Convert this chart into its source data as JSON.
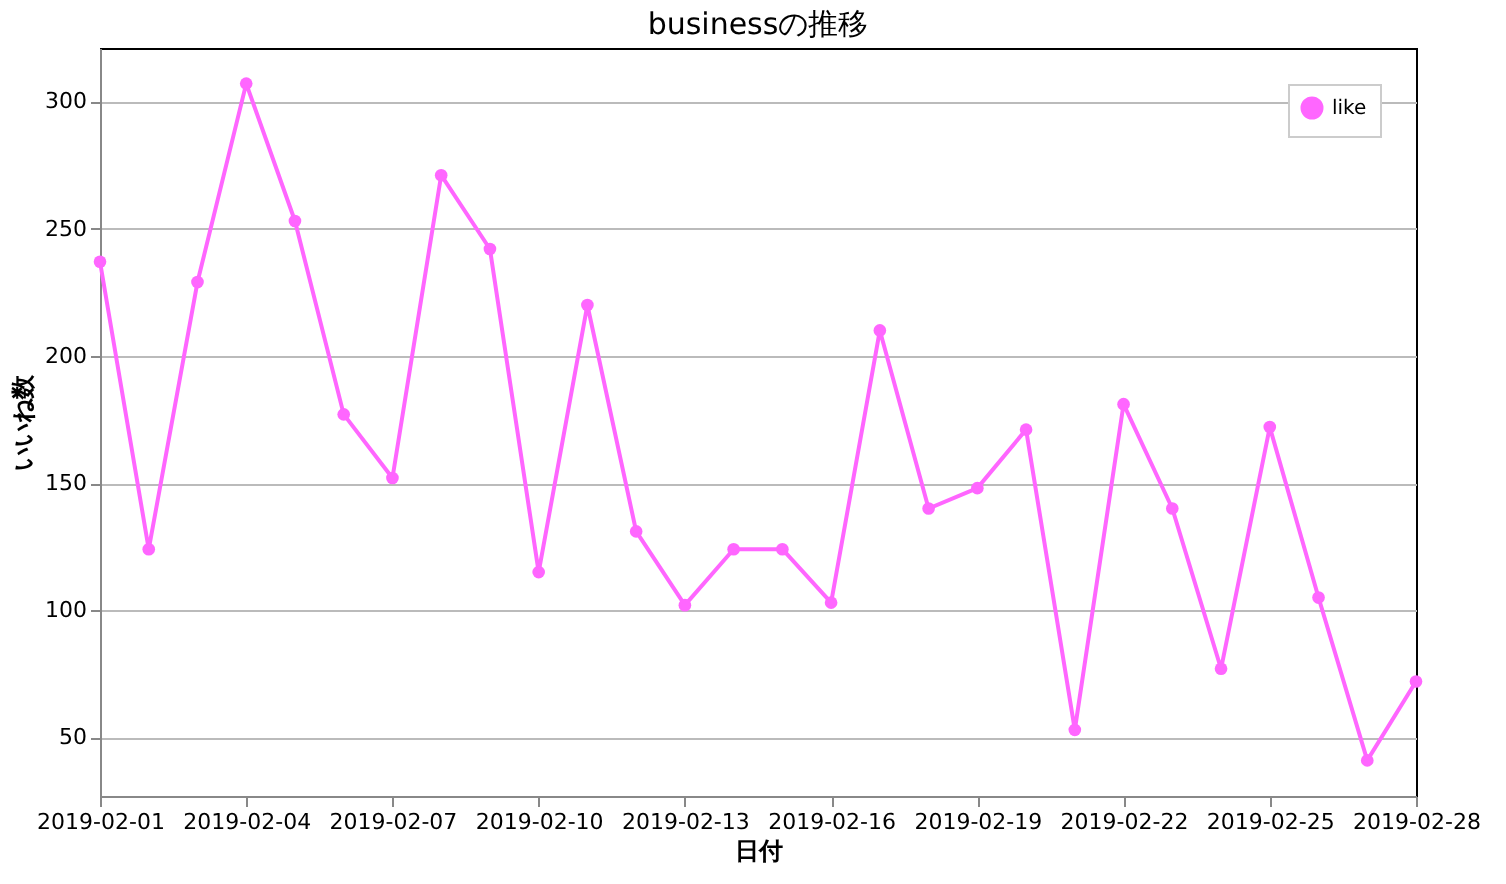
{
  "chart_data": {
    "type": "line",
    "title": "businessの推移",
    "xlabel": "日付",
    "ylabel": "いいね数",
    "x": [
      "2019-02-01",
      "2019-02-02",
      "2019-02-03",
      "2019-02-04",
      "2019-02-05",
      "2019-02-06",
      "2019-02-07",
      "2019-02-08",
      "2019-02-09",
      "2019-02-10",
      "2019-02-11",
      "2019-02-12",
      "2019-02-13",
      "2019-02-14",
      "2019-02-15",
      "2019-02-16",
      "2019-02-17",
      "2019-02-18",
      "2019-02-19",
      "2019-02-20",
      "2019-02-21",
      "2019-02-22",
      "2019-02-23",
      "2019-02-24",
      "2019-02-25",
      "2019-02-26",
      "2019-02-27",
      "2019-02-28"
    ],
    "series": [
      {
        "name": "like",
        "color": "#ff66ff",
        "values": [
          237,
          124,
          229,
          307,
          253,
          177,
          152,
          271,
          242,
          115,
          220,
          131,
          102,
          124,
          124,
          103,
          210,
          140,
          148,
          171,
          53,
          181,
          140,
          77,
          172,
          105,
          41,
          72
        ]
      }
    ],
    "xlim": [
      "2019-02-01",
      "2019-02-28"
    ],
    "xticks": [
      "2019-02-01",
      "2019-02-04",
      "2019-02-07",
      "2019-02-10",
      "2019-02-13",
      "2019-02-16",
      "2019-02-19",
      "2019-02-22",
      "2019-02-25",
      "2019-02-28"
    ],
    "ylim": [
      27,
      321
    ],
    "yticks": [
      50,
      100,
      150,
      200,
      250,
      300
    ],
    "grid": "y",
    "legend": "top right",
    "marker": "circle",
    "line_style": "solid"
  }
}
